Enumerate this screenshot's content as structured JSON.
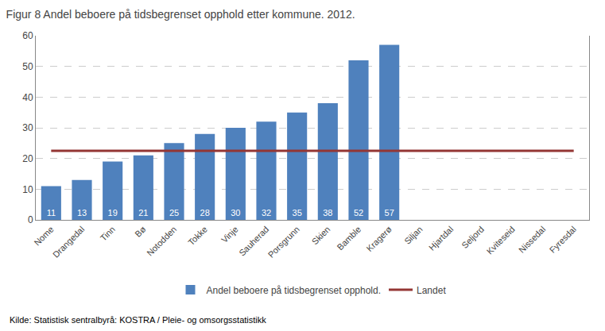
{
  "chart_data": {
    "type": "bar",
    "title": "Figur 8 Andel beboere på tidsbegrenset opphold etter kommune. 2012.",
    "categories": [
      "Nome",
      "Drangedal",
      "Tinn",
      "Bø",
      "Notodden",
      "Tokke",
      "Vinje",
      "Sauherad",
      "Porsgrunn",
      "Skien",
      "Bamble",
      "Kragerø",
      "Siljan",
      "Hjartdal",
      "Seljord",
      "Kviteseid",
      "Nissedal",
      "Fyresdal"
    ],
    "series": [
      {
        "name": "Andel beboere på tidsbegrenset opphold.",
        "color": "#4F81BD",
        "values": [
          11,
          13,
          19,
          21,
          25,
          28,
          30,
          32,
          35,
          38,
          52,
          57,
          null,
          null,
          null,
          null,
          null,
          null
        ]
      },
      {
        "name": "Landet",
        "type": "line",
        "color": "#943634",
        "values": [
          22.5,
          22.5,
          22.5,
          22.5,
          22.5,
          22.5,
          22.5,
          22.5,
          22.5,
          22.5,
          22.5,
          22.5,
          22.5,
          22.5,
          22.5,
          22.5,
          22.5,
          22.5
        ]
      }
    ],
    "ylim": [
      0,
      60
    ],
    "yticks": [
      0,
      10,
      20,
      30,
      40,
      50,
      60
    ],
    "grid": true,
    "data_labels": true,
    "legend": "bottom",
    "annotations": [
      "Kilde: Statistisk sentralbyrå: KOSTRA / Pleie- og omsorgsstatistikk"
    ]
  }
}
